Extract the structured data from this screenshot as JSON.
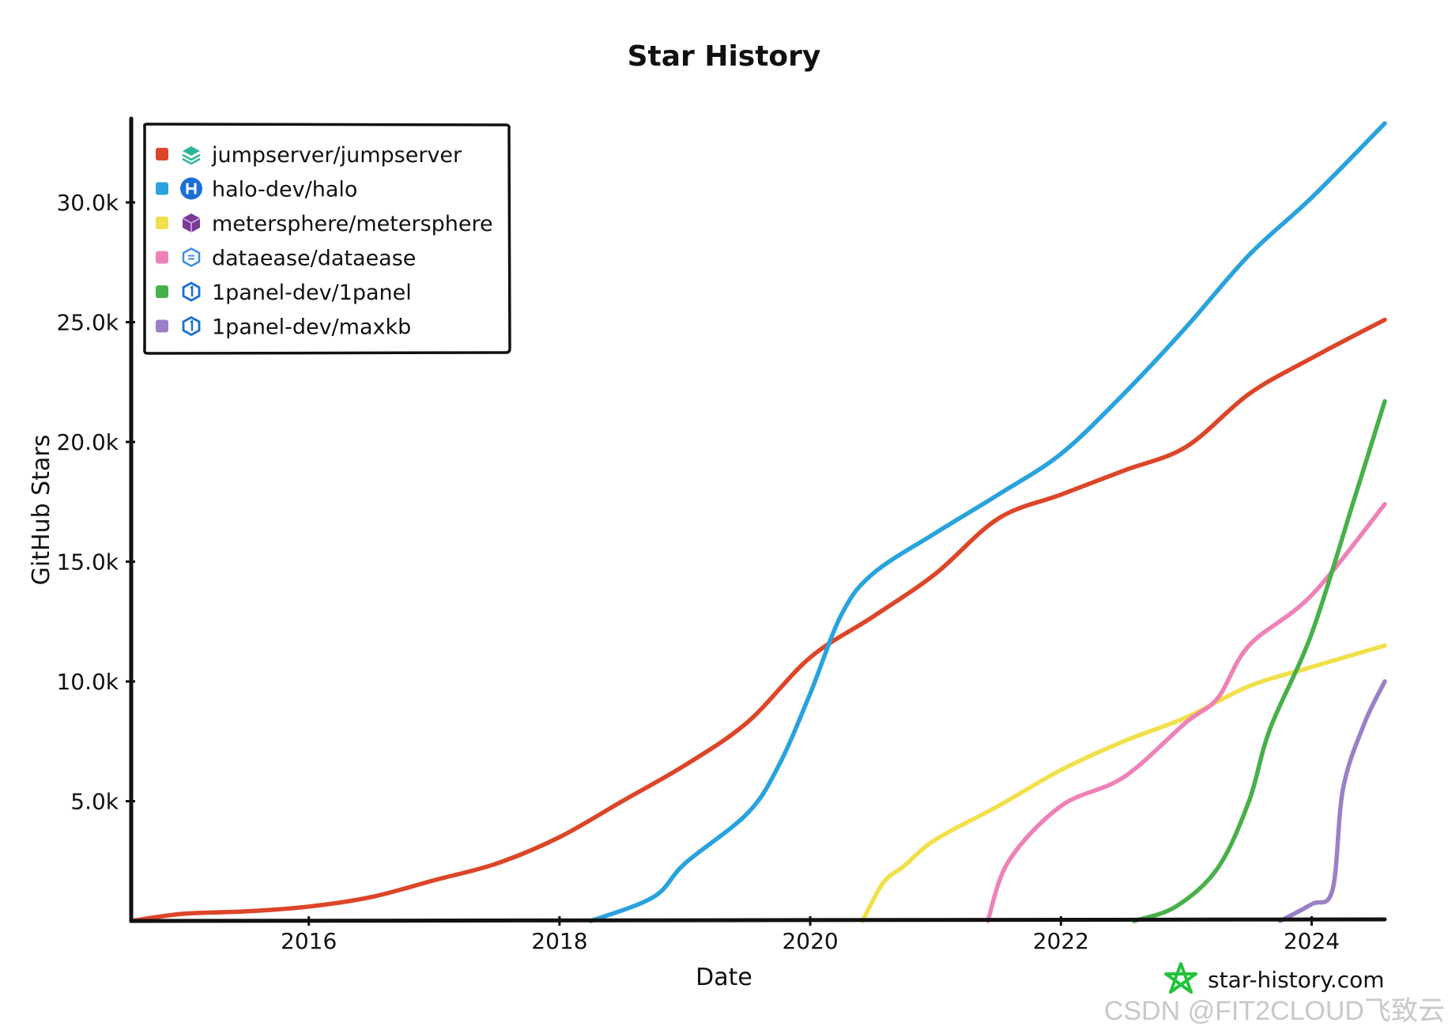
{
  "chart_data": {
    "type": "line",
    "title": "Star History",
    "xlabel": "Date",
    "ylabel": "GitHub Stars",
    "x_ticks": [
      "2016",
      "2018",
      "2020",
      "2022",
      "2024"
    ],
    "y_ticks": [
      "5.0k",
      "10.0k",
      "15.0k",
      "20.0k",
      "25.0k",
      "30.0k"
    ],
    "xlim": [
      "2014-08",
      "2024-08"
    ],
    "ylim": [
      0,
      33500
    ],
    "grid": false,
    "legend_position": "top-left",
    "series": [
      {
        "name": "jumpserver/jumpserver",
        "color": "#dd4528",
        "icon": "stack-layers-icon",
        "icon_color": "#2bb59a",
        "points": [
          [
            "2014-08",
            0
          ],
          [
            "2015-01",
            300
          ],
          [
            "2015-07",
            400
          ],
          [
            "2016-01",
            600
          ],
          [
            "2016-07",
            1000
          ],
          [
            "2017-01",
            1700
          ],
          [
            "2017-07",
            2400
          ],
          [
            "2018-01",
            3500
          ],
          [
            "2018-07",
            5000
          ],
          [
            "2019-01",
            6500
          ],
          [
            "2019-07",
            8300
          ],
          [
            "2020-01",
            11000
          ],
          [
            "2020-07",
            12700
          ],
          [
            "2021-01",
            14500
          ],
          [
            "2021-07",
            16800
          ],
          [
            "2022-01",
            17800
          ],
          [
            "2022-07",
            18800
          ],
          [
            "2023-01",
            19800
          ],
          [
            "2023-07",
            22000
          ],
          [
            "2024-01",
            23500
          ],
          [
            "2024-08",
            25100
          ]
        ]
      },
      {
        "name": "halo-dev/halo",
        "color": "#28a3dd",
        "icon": "halo-h-icon",
        "icon_color": "#1a6fd6",
        "points": [
          [
            "2018-04",
            0
          ],
          [
            "2018-10",
            1000
          ],
          [
            "2019-01",
            2400
          ],
          [
            "2019-07",
            4500
          ],
          [
            "2019-10",
            6500
          ],
          [
            "2020-01",
            9500
          ],
          [
            "2020-04",
            12800
          ],
          [
            "2020-07",
            14500
          ],
          [
            "2021-01",
            16200
          ],
          [
            "2021-07",
            17800
          ],
          [
            "2022-01",
            19500
          ],
          [
            "2022-07",
            22000
          ],
          [
            "2023-01",
            24800
          ],
          [
            "2023-07",
            27800
          ],
          [
            "2024-01",
            30200
          ],
          [
            "2024-08",
            33300
          ]
        ]
      },
      {
        "name": "metersphere/metersphere",
        "color": "#f2e04a",
        "icon": "metersphere-cube-icon",
        "icon_color": "#7a3a9a",
        "points": [
          [
            "2020-06",
            0
          ],
          [
            "2020-08",
            1600
          ],
          [
            "2020-10",
            2300
          ],
          [
            "2021-01",
            3400
          ],
          [
            "2021-07",
            4800
          ],
          [
            "2022-01",
            6300
          ],
          [
            "2022-07",
            7500
          ],
          [
            "2023-01",
            8500
          ],
          [
            "2023-07",
            9800
          ],
          [
            "2024-01",
            10600
          ],
          [
            "2024-08",
            11500
          ]
        ]
      },
      {
        "name": "dataease/dataease",
        "color": "#ee82b8",
        "icon": "dataease-hex-icon",
        "icon_color": "#3a8ee6",
        "points": [
          [
            "2021-06",
            0
          ],
          [
            "2021-08",
            2500
          ],
          [
            "2022-01",
            4800
          ],
          [
            "2022-07",
            6000
          ],
          [
            "2023-01",
            8300
          ],
          [
            "2023-04",
            9300
          ],
          [
            "2023-07",
            11500
          ],
          [
            "2024-01",
            13600
          ],
          [
            "2024-08",
            17400
          ]
        ]
      },
      {
        "name": "1panel-dev/1panel",
        "color": "#47b04a",
        "icon": "1panel-hex-icon",
        "icon_color": "#1a6fd6",
        "points": [
          [
            "2022-08",
            0
          ],
          [
            "2022-12",
            600
          ],
          [
            "2023-04",
            2200
          ],
          [
            "2023-07",
            5000
          ],
          [
            "2023-09",
            8000
          ],
          [
            "2024-01",
            12000
          ],
          [
            "2024-05",
            17500
          ],
          [
            "2024-08",
            21700
          ]
        ]
      },
      {
        "name": "1panel-dev/maxkb",
        "color": "#9a80c8",
        "icon": "1panel-hex-icon",
        "icon_color": "#1a6fd6",
        "points": [
          [
            "2023-10",
            0
          ],
          [
            "2024-01",
            700
          ],
          [
            "2024-03",
            1300
          ],
          [
            "2024-04",
            5500
          ],
          [
            "2024-06",
            8200
          ],
          [
            "2024-08",
            10000
          ]
        ]
      }
    ]
  },
  "brand": {
    "text": "star-history.com",
    "icon": "star-outline-icon",
    "icon_color": "#22c33a"
  },
  "watermark": {
    "text": "CSDN @FIT2CLOUD飞致云"
  }
}
